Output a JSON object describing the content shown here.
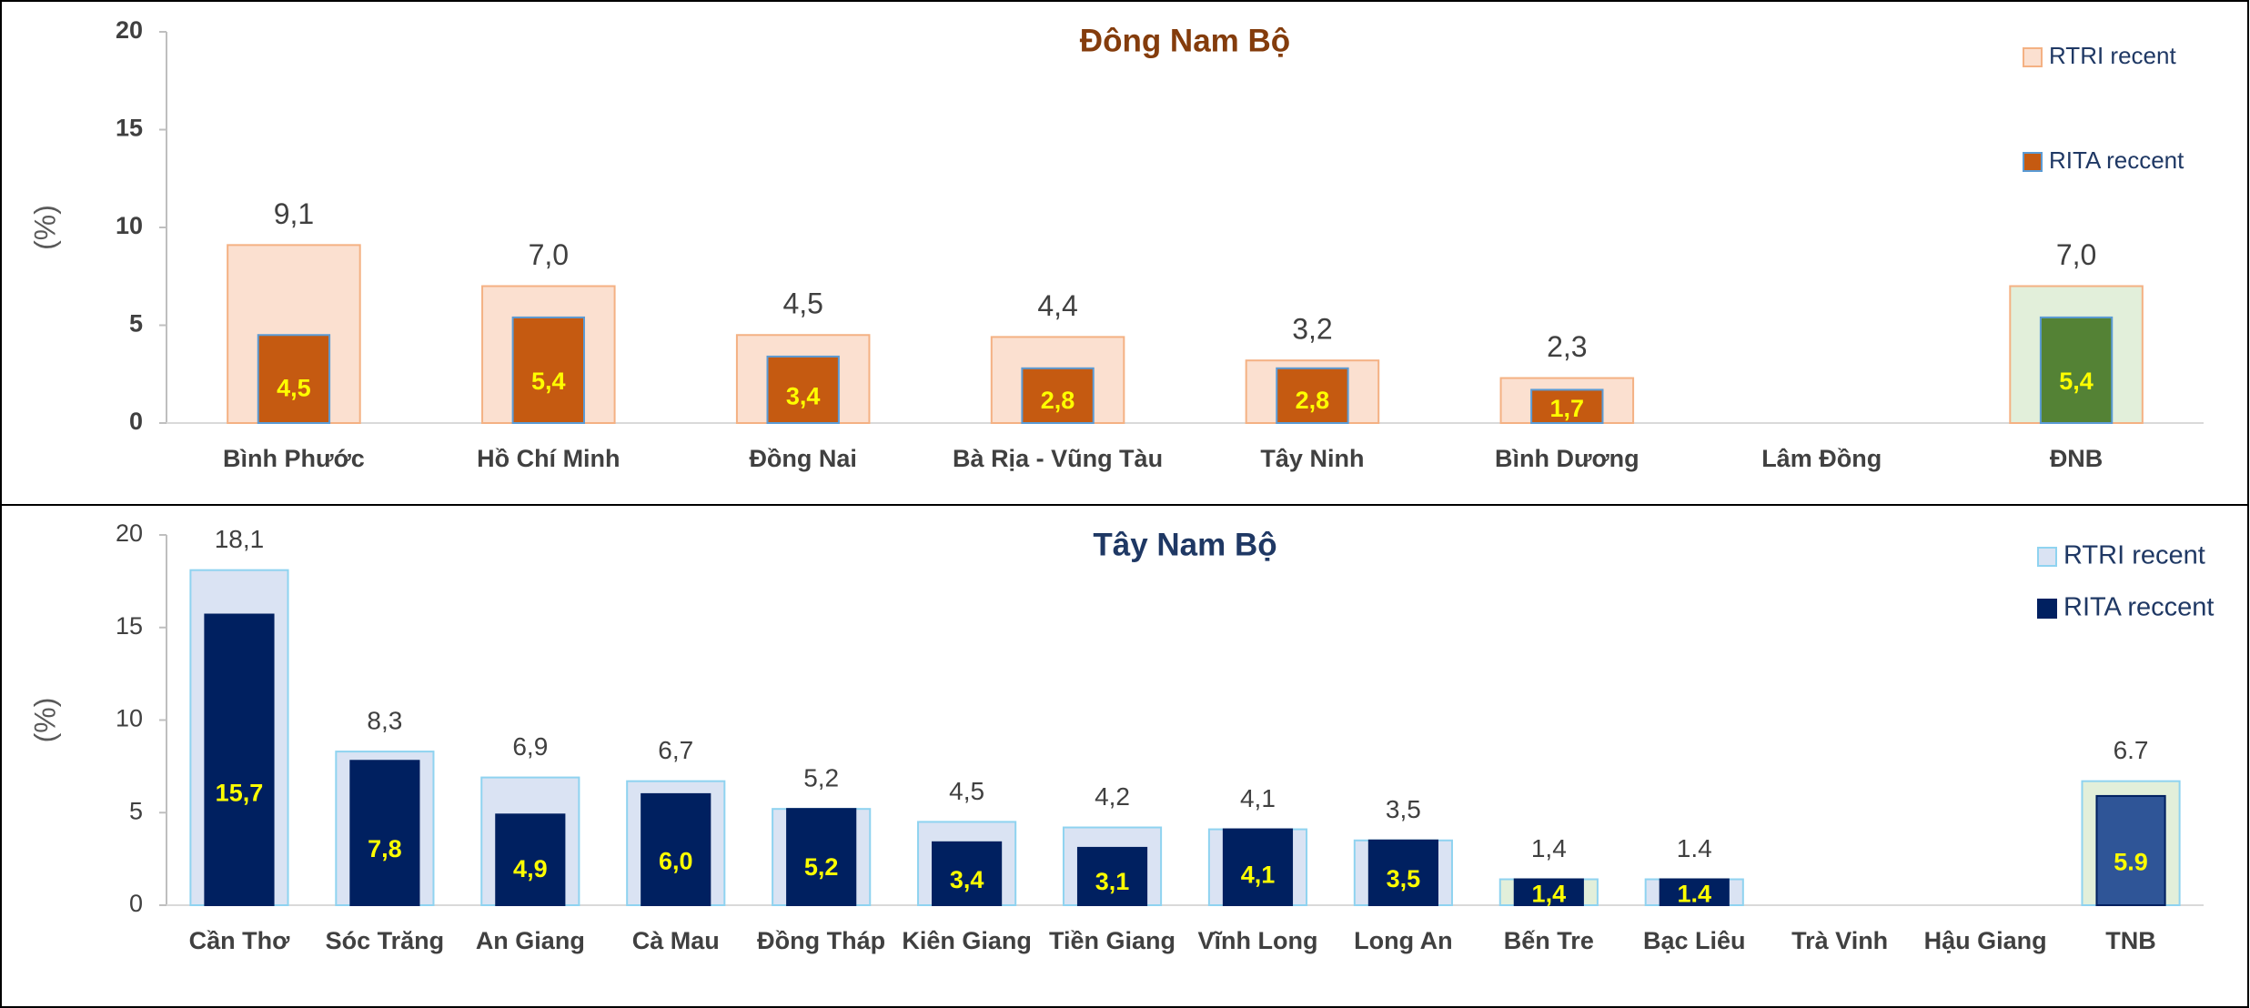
{
  "chart_data": [
    {
      "type": "bar",
      "title": "Đông Nam Bộ",
      "title_color": "#843c0c",
      "ylabel": "(%)",
      "categories": [
        "Bình Phước",
        "Hồ Chí Minh",
        "Đồng Nai",
        "Bà Rịa - Vũng Tàu",
        "Tây Ninh",
        "Bình Dương",
        "Lâm Đồng",
        "ĐNB"
      ],
      "series": [
        {
          "name": "RTRI recent",
          "color": "#fbe0d0",
          "stroke": "#f4b183",
          "colors": [
            "#fbe0d0",
            "#fbe0d0",
            "#fbe0d0",
            "#fbe0d0",
            "#fbe0d0",
            "#fbe0d0",
            "#fbe0d0",
            "#e2efda"
          ],
          "values": [
            9.1,
            7.0,
            4.5,
            4.4,
            3.2,
            2.3,
            null,
            7.0
          ],
          "value_labels": [
            "9,1",
            "7,0",
            "4,5",
            "4,4",
            "3,2",
            "2,3",
            null,
            "7,0"
          ]
        },
        {
          "name": "RITA reccent",
          "color": "#c55a11",
          "stroke": "#5b9bd5",
          "colors": [
            "#c55a11",
            "#c55a11",
            "#c55a11",
            "#c55a11",
            "#c55a11",
            "#c55a11",
            "#c55a11",
            "#548235"
          ],
          "values": [
            4.5,
            5.4,
            3.4,
            2.8,
            2.8,
            1.7,
            null,
            5.4
          ],
          "value_labels": [
            "4,5",
            "5,4",
            "3,4",
            "2,8",
            "2,8",
            "1,7",
            null,
            "5,4"
          ]
        }
      ],
      "ylim": [
        0,
        20
      ],
      "yticks": [
        0,
        5,
        10,
        15,
        20
      ],
      "legend": "upper right"
    },
    {
      "type": "bar",
      "title": "Tây Nam Bộ",
      "title_color": "#1f3864",
      "ylabel": "(%)",
      "categories": [
        "Cần Thơ",
        "Sóc Trăng",
        "An Giang",
        "Cà Mau",
        "Đồng Tháp",
        "Kiên Giang",
        "Tiền Giang",
        "Vĩnh Long",
        "Long An",
        "Bến Tre",
        "Bạc Liêu",
        "Trà Vinh",
        "Hậu Giang",
        "TNB"
      ],
      "series": [
        {
          "name": "RTRI recent",
          "color": "#dae3f3",
          "stroke": "#8fd3f0",
          "colors": [
            "#dae3f3",
            "#dae3f3",
            "#dae3f3",
            "#dae3f3",
            "#dae3f3",
            "#dae3f3",
            "#dae3f3",
            "#dae3f3",
            "#dae3f3",
            "#e2efda",
            "#dae3f3",
            "#dae3f3",
            "#dae3f3",
            "#e2efda"
          ],
          "values": [
            18.1,
            8.3,
            6.9,
            6.7,
            5.2,
            4.5,
            4.2,
            4.1,
            3.5,
            1.4,
            1.4,
            null,
            null,
            6.7
          ],
          "value_labels": [
            "18,1",
            "8,3",
            "6,9",
            "6,7",
            "5,2",
            "4,5",
            "4,2",
            "4,1",
            "3,5",
            "1,4",
            "1.4",
            null,
            null,
            "6.7"
          ]
        },
        {
          "name": "RITA reccent",
          "color": "#002060",
          "stroke": "#002060",
          "colors": [
            "#002060",
            "#002060",
            "#002060",
            "#002060",
            "#002060",
            "#002060",
            "#002060",
            "#002060",
            "#002060",
            "#002060",
            "#002060",
            "#002060",
            "#002060",
            "#2f5597"
          ],
          "values": [
            15.7,
            7.8,
            4.9,
            6.0,
            5.2,
            3.4,
            3.1,
            4.1,
            3.5,
            1.4,
            1.4,
            null,
            null,
            5.9
          ],
          "value_labels": [
            "15,7",
            "7,8",
            "4,9",
            "6,0",
            "5,2",
            "3,4",
            "3,1",
            "4,1",
            "3,5",
            "1,4",
            "1.4",
            null,
            null,
            "5.9"
          ]
        }
      ],
      "ylim": [
        0,
        20
      ],
      "yticks": [
        0,
        5,
        10,
        15,
        20
      ],
      "legend": "upper right"
    }
  ]
}
